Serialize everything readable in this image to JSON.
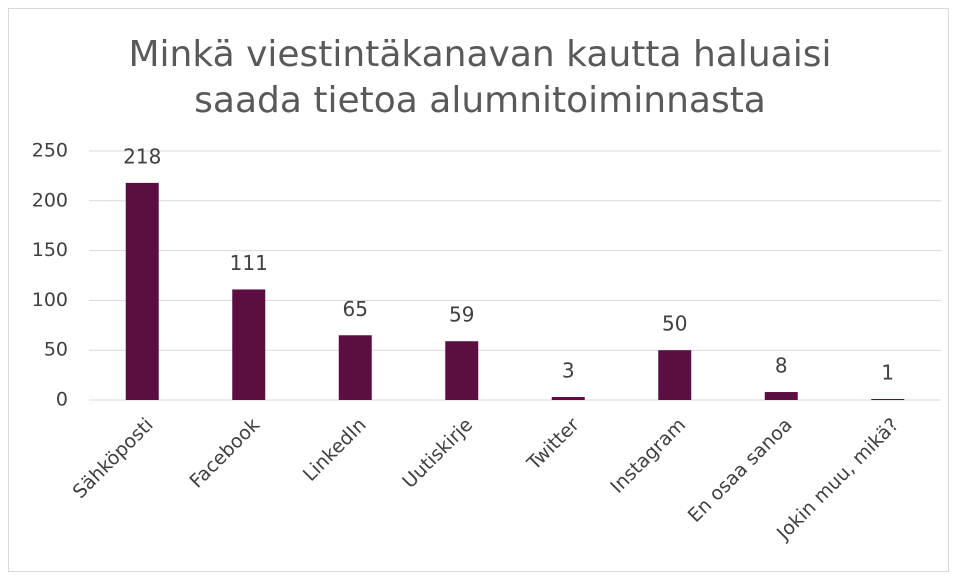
{
  "chart_data": {
    "type": "bar",
    "title": "Minkä viestintäkanavan kautta haluaisi saada tietoa alumnitoiminnasta",
    "categories": [
      "Sähköposti",
      "Facebook",
      "LinkedIn",
      "Uutiskirje",
      "Twitter",
      "Instagram",
      "En osaa sanoa",
      "Jokin muu, mikä?"
    ],
    "values": [
      218,
      111,
      65,
      59,
      3,
      50,
      8,
      1
    ],
    "color": "#5c0e43",
    "ylim": [
      0,
      250
    ],
    "yticks": [
      0,
      50,
      100,
      150,
      200,
      250
    ],
    "grid": true
  }
}
